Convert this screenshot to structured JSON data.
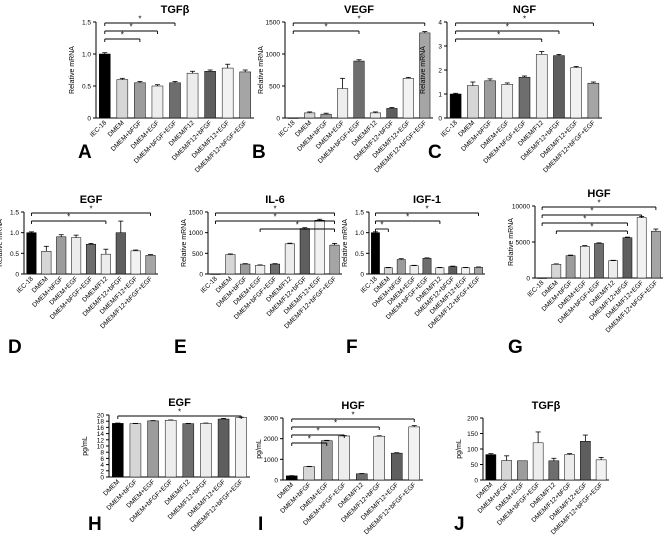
{
  "figure": {
    "background": "#ffffff",
    "ink": "#000000"
  },
  "chart_data": [
    {
      "panel": "A",
      "type": "bar",
      "title": "TGFβ",
      "ylabel": "Relative mRNA",
      "ylim": [
        0,
        1.5
      ],
      "yticks": [
        0,
        0.5,
        1.0,
        1.5
      ],
      "ytick_labels": [
        "0",
        "0.5",
        "1.0",
        "1.5"
      ],
      "categories": [
        "IEC-18",
        "DMEM",
        "DMEM+bFGF",
        "DMEM+EGF",
        "DMEM+bFGF+EGF",
        "DMEM/F12",
        "DMEM/F12+bFGF",
        "DMEM/F12+EGF",
        "DMEM/F12+bFGF+EGF"
      ],
      "values": [
        1.0,
        0.6,
        0.55,
        0.5,
        0.55,
        0.7,
        0.73,
        0.78,
        0.72
      ],
      "errors": [
        0.02,
        0.02,
        0.02,
        0.02,
        0.02,
        0.03,
        0.02,
        0.06,
        0.03
      ],
      "colors": [
        "#000000",
        "#d6d6d6",
        "#9c9c9c",
        "#ededed",
        "#6e6e6e",
        "#ececec",
        "#5e5e5e",
        "#f2f2f2",
        "#a5a5a5"
      ],
      "significance": [
        {
          "from": 0,
          "to": 4,
          "label": "*"
        },
        {
          "from": 0,
          "to": 3,
          "label": "*"
        },
        {
          "from": 0,
          "to": 2,
          "label": "*"
        }
      ]
    },
    {
      "panel": "B",
      "type": "bar",
      "title": "VEGF",
      "ylabel": "Relative mRNA",
      "ylim": [
        0,
        1500
      ],
      "yticks": [
        0,
        500,
        1000,
        1500
      ],
      "ytick_labels": [
        "0",
        "500",
        "1000",
        "1500"
      ],
      "categories": [
        "IEC-18",
        "DMEM",
        "DMEM+bFGF",
        "DMEM+EGF",
        "DMEM+bFGF+EGF",
        "DMEM/F12",
        "DMEM/F12+bFGF",
        "DMEM/F12+EGF",
        "DMEM/F12+bFGF+EGF"
      ],
      "values": [
        1,
        80,
        60,
        460,
        890,
        80,
        150,
        620,
        1330
      ],
      "errors": [
        0,
        15,
        15,
        160,
        20,
        15,
        15,
        15,
        20
      ],
      "colors": [
        "#000000",
        "#d6d6d6",
        "#9c9c9c",
        "#ededed",
        "#6e6e6e",
        "#ececec",
        "#5e5e5e",
        "#f2f2f2",
        "#a5a5a5"
      ],
      "significance": [
        {
          "from": 0,
          "to": 8,
          "label": "*"
        },
        {
          "from": 0,
          "to": 4,
          "label": "*"
        }
      ]
    },
    {
      "panel": "C",
      "type": "bar",
      "title": "NGF",
      "ylabel": "Relative mRNA",
      "ylim": [
        0,
        4
      ],
      "yticks": [
        0,
        1,
        2,
        3,
        4
      ],
      "ytick_labels": [
        "0",
        "1",
        "2",
        "3",
        "4"
      ],
      "categories": [
        "IEC-18",
        "DMEM",
        "DMEM+bFGF",
        "DMEM+EGF",
        "DMEM+bFGF+EGF",
        "DMEM/F12",
        "DMEM/F12+bFGF",
        "DMEM/F12+EGF",
        "DMEM/F12+bFGF+EGF"
      ],
      "values": [
        1.0,
        1.35,
        1.55,
        1.4,
        1.7,
        2.65,
        2.6,
        2.1,
        1.45
      ],
      "errors": [
        0.03,
        0.15,
        0.08,
        0.06,
        0.05,
        0.12,
        0.05,
        0.05,
        0.05
      ],
      "colors": [
        "#000000",
        "#d6d6d6",
        "#9c9c9c",
        "#ededed",
        "#6e6e6e",
        "#ececec",
        "#5e5e5e",
        "#f2f2f2",
        "#a5a5a5"
      ],
      "significance": [
        {
          "from": 0,
          "to": 8,
          "label": "*"
        },
        {
          "from": 0,
          "to": 6,
          "label": "*"
        },
        {
          "from": 0,
          "to": 5,
          "label": "*"
        }
      ]
    },
    {
      "panel": "D",
      "type": "bar",
      "title": "EGF",
      "ylabel": "Relative mRNA",
      "ylim": [
        0,
        1.5
      ],
      "yticks": [
        0,
        0.5,
        1.0,
        1.5
      ],
      "ytick_labels": [
        "0",
        "0.5",
        "1.0",
        "1.5"
      ],
      "categories": [
        "IEC-18",
        "DMEM",
        "DMEM+bFGF",
        "DMEM+EGF",
        "DMEM+bFGF+EGF",
        "DMEM/F12",
        "DMEM/F12+bFGF",
        "DMEM/F12+EGF",
        "DMEM/F12+bFGF+EGF"
      ],
      "values": [
        1.0,
        0.55,
        0.9,
        0.88,
        0.72,
        0.48,
        1.0,
        0.56,
        0.45
      ],
      "errors": [
        0.02,
        0.12,
        0.05,
        0.06,
        0.02,
        0.12,
        0.28,
        0.02,
        0.02
      ],
      "colors": [
        "#000000",
        "#d6d6d6",
        "#9c9c9c",
        "#ededed",
        "#6e6e6e",
        "#ececec",
        "#5e5e5e",
        "#f2f2f2",
        "#a5a5a5"
      ],
      "significance": [
        {
          "from": 0,
          "to": 8,
          "label": "*"
        },
        {
          "from": 0,
          "to": 5,
          "label": "*"
        }
      ]
    },
    {
      "panel": "E",
      "type": "bar",
      "title": "IL-6",
      "ylabel": "Relative mRNA",
      "ylim": [
        0,
        1500
      ],
      "yticks": [
        0,
        500,
        1000,
        1500
      ],
      "ytick_labels": [
        "0",
        "500",
        "1000",
        "1500"
      ],
      "categories": [
        "IEC-18",
        "DMEM",
        "DMEM+bFGF",
        "DMEM+EGF",
        "DMEM+bFGF+EGF",
        "DMEM/F12",
        "DMEM/F12+bFGF",
        "DMEM/F12+EGF",
        "DMEM/F12+bFGF+EGF"
      ],
      "values": [
        1,
        470,
        240,
        210,
        240,
        730,
        1100,
        1300,
        700
      ],
      "errors": [
        0,
        15,
        10,
        10,
        10,
        15,
        20,
        25,
        40
      ],
      "colors": [
        "#000000",
        "#d6d6d6",
        "#9c9c9c",
        "#ededed",
        "#6e6e6e",
        "#ececec",
        "#5e5e5e",
        "#f2f2f2",
        "#a5a5a5"
      ],
      "significance": [
        {
          "from": 0,
          "to": 8,
          "label": "*"
        },
        {
          "from": 0,
          "to": 8,
          "label": "*"
        },
        {
          "from": 3,
          "to": 8,
          "label": "*"
        }
      ]
    },
    {
      "panel": "F",
      "type": "bar",
      "title": "IGF-1",
      "ylabel": "Relative mRNA",
      "ylim": [
        0,
        1.5
      ],
      "yticks": [
        0,
        0.5,
        1.0,
        1.5
      ],
      "ytick_labels": [
        "0",
        "0.5",
        "1.0",
        "1.5"
      ],
      "categories": [
        "IEC-18",
        "DMEM",
        "DMEM+bFGF",
        "DMEM+EGF",
        "DMEM+bFGF+EGF",
        "DMEM/F12",
        "DMEM/F12+bFGF",
        "DMEM/F12+EGF",
        "DMEM/F12+bFGF+EGF"
      ],
      "values": [
        1.0,
        0.15,
        0.35,
        0.2,
        0.38,
        0.15,
        0.18,
        0.15,
        0.16
      ],
      "errors": [
        0.02,
        0.01,
        0.02,
        0.01,
        0.01,
        0.01,
        0.01,
        0.01,
        0.01
      ],
      "colors": [
        "#000000",
        "#d6d6d6",
        "#9c9c9c",
        "#ededed",
        "#6e6e6e",
        "#ececec",
        "#5e5e5e",
        "#f2f2f2",
        "#a5a5a5"
      ],
      "significance": [
        {
          "from": 0,
          "to": 8,
          "label": "*"
        },
        {
          "from": 0,
          "to": 5,
          "label": "*"
        },
        {
          "from": 0,
          "to": 1,
          "label": "*"
        }
      ]
    },
    {
      "panel": "G",
      "type": "bar",
      "title": "HGF",
      "ylabel": "Relative mRNA",
      "ylim": [
        0,
        10000
      ],
      "yticks": [
        0,
        5000,
        10000
      ],
      "ytick_labels": [
        "0",
        "5000",
        "10000"
      ],
      "categories": [
        "IEC-18",
        "DMEM",
        "DMEM+bFGF",
        "DMEM+EGF",
        "DMEM+bFGF+EGF",
        "DMEM/F12",
        "DMEM/F12+bFGF",
        "DMEM/F12+EGF",
        "DMEM/F12+bFGF+EGF"
      ],
      "values": [
        1,
        1900,
        3100,
        4400,
        4800,
        2400,
        5600,
        8400,
        6500
      ],
      "errors": [
        0,
        60,
        80,
        100,
        80,
        60,
        80,
        150,
        300
      ],
      "colors": [
        "#000000",
        "#d6d6d6",
        "#9c9c9c",
        "#ededed",
        "#6e6e6e",
        "#ececec",
        "#5e5e5e",
        "#f2f2f2",
        "#a5a5a5"
      ],
      "significance": [
        {
          "from": 0,
          "to": 8,
          "label": "*"
        },
        {
          "from": 0,
          "to": 7,
          "label": "*"
        },
        {
          "from": 0,
          "to": 6,
          "label": "*"
        },
        {
          "from": 1,
          "to": 6,
          "label": "*"
        }
      ]
    },
    {
      "panel": "H",
      "type": "bar",
      "title": "EGF",
      "ylabel": "pg/mL",
      "ylim": [
        0,
        20
      ],
      "yticks": [
        0,
        2,
        4,
        6,
        8,
        10,
        12,
        14,
        16,
        18,
        20
      ],
      "ytick_labels": [
        "0",
        "2",
        "4",
        "6",
        "8",
        "10",
        "12",
        "14",
        "16",
        "18",
        "20"
      ],
      "categories": [
        "DMEM",
        "DMEM+bFGF",
        "DMEM+EGF",
        "DMEM+bFGF+EGF",
        "DMEM/F12",
        "DMEM/F12+bFGF",
        "DMEM/F12+EGF",
        "DMEM/F12+bFGF+EGF"
      ],
      "values": [
        17.3,
        17.2,
        18.1,
        18.3,
        17.2,
        17.3,
        18.7,
        19.2
      ],
      "errors": [
        0.1,
        0.1,
        0.1,
        0.1,
        0.1,
        0.1,
        0.2,
        0.1
      ],
      "colors": [
        "#000000",
        "#d6d6d6",
        "#9c9c9c",
        "#ededed",
        "#6e6e6e",
        "#ececec",
        "#5e5e5e",
        "#f2f2f2"
      ],
      "significance": [
        {
          "from": 0,
          "to": 7,
          "label": "*"
        }
      ]
    },
    {
      "panel": "I",
      "type": "bar",
      "title": "HGF",
      "ylabel": "pg/mL",
      "ylim": [
        0,
        3000
      ],
      "yticks": [
        0,
        1000,
        2000,
        3000
      ],
      "ytick_labels": [
        "0",
        "1000",
        "2000",
        "3000"
      ],
      "categories": [
        "DMEM",
        "DMEM+bFGF",
        "DMEM+EGF",
        "DMEM+bFGF+EGF",
        "DMEM/F12",
        "DMEM/F12+bFGF",
        "DMEM/F12+EGF",
        "DMEM/F12+bFGF+EGF"
      ],
      "values": [
        200,
        640,
        1900,
        2130,
        300,
        2120,
        1300,
        2570
      ],
      "errors": [
        10,
        20,
        20,
        20,
        15,
        20,
        20,
        60
      ],
      "colors": [
        "#000000",
        "#d6d6d6",
        "#9c9c9c",
        "#ededed",
        "#6e6e6e",
        "#ececec",
        "#5e5e5e",
        "#f2f2f2"
      ],
      "significance": [
        {
          "from": 0,
          "to": 7,
          "label": "*"
        },
        {
          "from": 0,
          "to": 5,
          "label": "*"
        },
        {
          "from": 0,
          "to": 3,
          "label": "*"
        },
        {
          "from": 0,
          "to": 2,
          "label": "*"
        }
      ]
    },
    {
      "panel": "J",
      "type": "bar",
      "title": "TGFβ",
      "ylabel": "pg/mL",
      "ylim": [
        0,
        200
      ],
      "yticks": [
        0,
        50,
        100,
        150,
        200
      ],
      "ytick_labels": [
        "0",
        "50",
        "100",
        "150",
        "200"
      ],
      "categories": [
        "DMEM",
        "DMEM+bFGF",
        "DMEM+EGF",
        "DMEM+bFGF+EGF",
        "DMEM/F12",
        "DMEM/F12+bFGF",
        "DMEM/F12+EGF",
        "DMEM/F12+bFGF+EGF"
      ],
      "values": [
        82,
        63,
        62,
        120,
        62,
        82,
        125,
        65
      ],
      "errors": [
        3,
        15,
        0,
        35,
        8,
        3,
        20,
        8
      ],
      "colors": [
        "#000000",
        "#d6d6d6",
        "#9c9c9c",
        "#ededed",
        "#6e6e6e",
        "#ececec",
        "#5e5e5e",
        "#f2f2f2"
      ],
      "significance": []
    }
  ]
}
